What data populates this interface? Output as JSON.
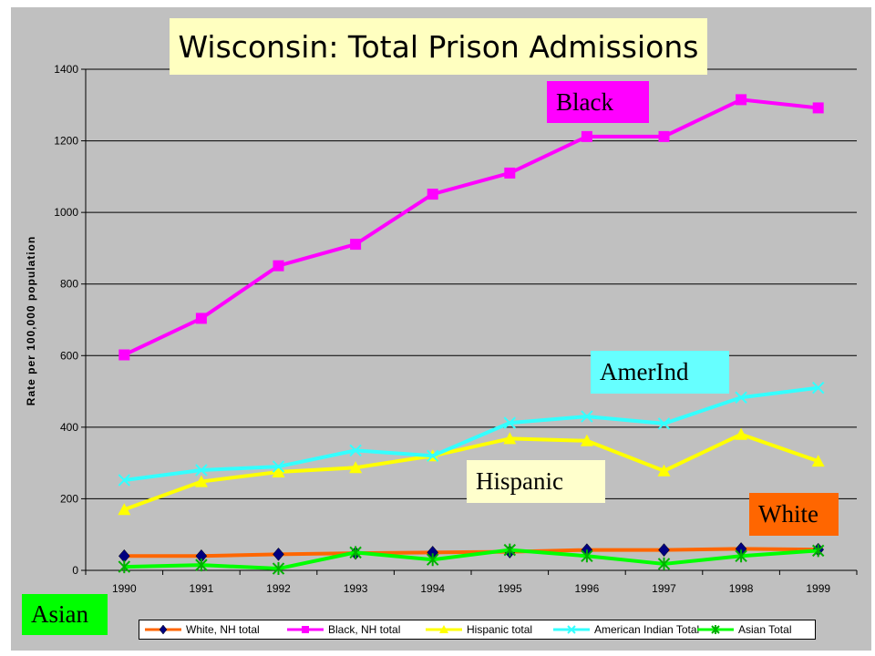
{
  "chart_data": {
    "type": "line",
    "title": "Wisconsin: Total Prison Admissions",
    "xlabel": "",
    "ylabel": "Rate per 100,000 population",
    "ylim": [
      0,
      1400
    ],
    "yticks": [
      0,
      200,
      400,
      600,
      800,
      1000,
      1200,
      1400
    ],
    "x": [
      1990,
      1991,
      1992,
      1993,
      1994,
      1995,
      1996,
      1997,
      1998,
      1999
    ],
    "grid": true,
    "legend": "bottom",
    "series": [
      {
        "name": "White, NH total",
        "color": "#ff6600",
        "marker": "diamond",
        "marker_color": "#000080",
        "values": [
          40,
          40,
          45,
          48,
          50,
          52,
          57,
          57,
          60,
          58
        ]
      },
      {
        "name": "Black, NH total",
        "color": "#ff00ff",
        "marker": "square",
        "marker_color": "#ff00ff",
        "values": [
          602,
          704,
          851,
          911,
          1051,
          1110,
          1212,
          1212,
          1315,
          1292
        ]
      },
      {
        "name": "Hispanic total",
        "color": "#ffff00",
        "marker": "triangle",
        "marker_color": "#ffff00",
        "values": [
          170,
          248,
          275,
          287,
          320,
          368,
          362,
          278,
          380,
          305
        ]
      },
      {
        "name": "American Indian Total",
        "color": "#33ffff",
        "marker": "x",
        "marker_color": "#33ffff",
        "values": [
          252,
          280,
          290,
          335,
          320,
          412,
          430,
          410,
          483,
          510
        ]
      },
      {
        "name": "Asian Total",
        "color": "#00ff00",
        "marker": "asterisk",
        "marker_color": "#00b000",
        "values": [
          10,
          15,
          5,
          50,
          30,
          57,
          40,
          18,
          40,
          55
        ]
      }
    ],
    "annotations": [
      {
        "id": "black",
        "text": "Black"
      },
      {
        "id": "amerind",
        "text": "AmerInd"
      },
      {
        "id": "hispanic",
        "text": "Hispanic"
      },
      {
        "id": "white",
        "text": "White"
      },
      {
        "id": "asian",
        "text": "Asian"
      }
    ]
  }
}
